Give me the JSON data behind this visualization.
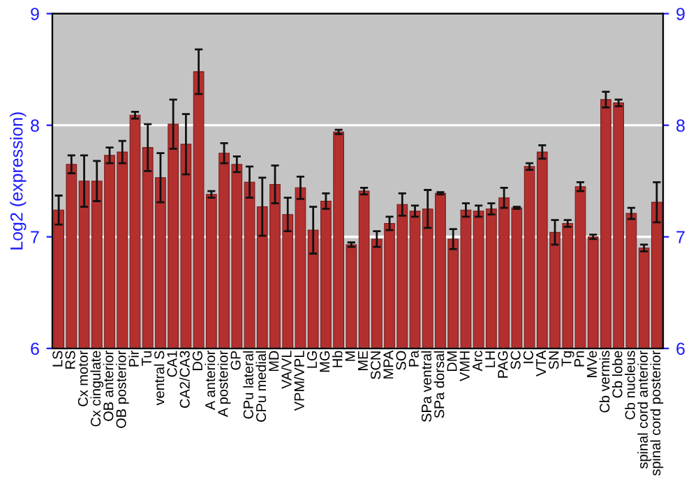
{
  "chart_data": {
    "type": "bar",
    "ylabel": "Log2 (expression)",
    "categories": [
      "LS",
      "RS",
      "Cx motor",
      "Cx cingulate",
      "OB anterior",
      "OB posterior",
      "Pir",
      "Tu",
      "ventral S",
      "CA1",
      "CA2/CA3",
      "DG",
      "A anterior",
      "A posterior",
      "GP",
      "CPu lateral",
      "CPu medial",
      "MD",
      "VA/VL",
      "VPM/VPL",
      "LG",
      "MG",
      "Hb",
      "M",
      "ME",
      "SCN",
      "MPA",
      "SO",
      "Pa",
      "SPa ventral",
      "SPa dorsal",
      "DM",
      "VMH",
      "Arc",
      "LH",
      "PAG",
      "SC",
      "IC",
      "VTA",
      "SN",
      "Tg",
      "Pn",
      "MVe",
      "Cb vermis",
      "Cb lobe",
      "Cb nucleus",
      "spinal cord anterior",
      "spinal cord posterior"
    ],
    "values": [
      7.24,
      7.65,
      7.5,
      7.5,
      7.73,
      7.76,
      8.09,
      7.8,
      7.53,
      8.01,
      7.83,
      8.48,
      7.38,
      7.75,
      7.65,
      7.49,
      7.27,
      7.47,
      7.2,
      7.44,
      7.06,
      7.32,
      7.94,
      6.93,
      7.41,
      6.98,
      7.12,
      7.29,
      7.23,
      7.25,
      7.39,
      6.98,
      7.24,
      7.23,
      7.25,
      7.35,
      7.26,
      7.63,
      7.76,
      7.04,
      7.12,
      7.45,
      7.0,
      8.23,
      8.2,
      7.21,
      6.9,
      7.31
    ],
    "errors": [
      0.13,
      0.08,
      0.23,
      0.18,
      0.07,
      0.1,
      0.03,
      0.21,
      0.22,
      0.22,
      0.27,
      0.2,
      0.03,
      0.09,
      0.07,
      0.14,
      0.26,
      0.17,
      0.15,
      0.1,
      0.21,
      0.07,
      0.02,
      0.02,
      0.03,
      0.07,
      0.06,
      0.1,
      0.05,
      0.17,
      0.01,
      0.09,
      0.06,
      0.05,
      0.05,
      0.09,
      0.01,
      0.03,
      0.06,
      0.11,
      0.03,
      0.04,
      0.02,
      0.07,
      0.03,
      0.05,
      0.03,
      0.18
    ],
    "color": "#b3302f",
    "ylim": [
      6,
      9
    ],
    "yticks": [
      6,
      7,
      8,
      9
    ],
    "y2lim": [
      6,
      9
    ],
    "y2ticks": [
      6,
      7,
      8,
      9
    ],
    "grid": "y"
  }
}
